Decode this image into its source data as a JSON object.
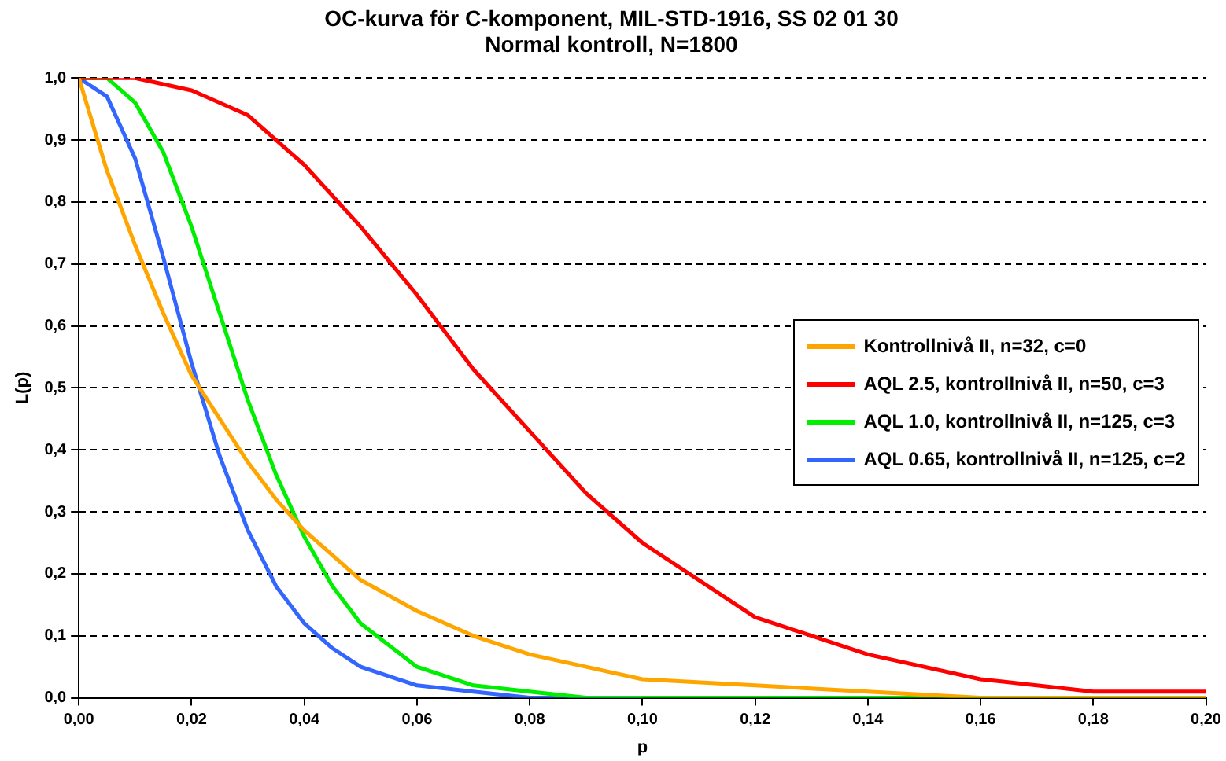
{
  "chart_data": {
    "type": "line",
    "title": "OC-kurva för C-komponent, MIL-STD-1916, SS 02 01 30",
    "subtitle": "Normal kontroll, N=1800",
    "xlabel": "p",
    "ylabel": "L(p)",
    "xlim": [
      0,
      0.2
    ],
    "ylim": [
      0,
      1
    ],
    "xticks": [
      {
        "value": 0,
        "label": "0,00"
      },
      {
        "value": 0.02,
        "label": "0,02"
      },
      {
        "value": 0.04,
        "label": "0,04"
      },
      {
        "value": 0.06,
        "label": "0,06"
      },
      {
        "value": 0.08,
        "label": "0,08"
      },
      {
        "value": 0.1,
        "label": "0,10"
      },
      {
        "value": 0.12,
        "label": "0,12"
      },
      {
        "value": 0.14,
        "label": "0,14"
      },
      {
        "value": 0.16,
        "label": "0,16"
      },
      {
        "value": 0.18,
        "label": "0,18"
      },
      {
        "value": 0.2,
        "label": "0,20"
      }
    ],
    "yticks": [
      {
        "value": 0,
        "label": "0,0"
      },
      {
        "value": 0.1,
        "label": "0,1"
      },
      {
        "value": 0.2,
        "label": "0,2"
      },
      {
        "value": 0.3,
        "label": "0,3"
      },
      {
        "value": 0.4,
        "label": "0,4"
      },
      {
        "value": 0.5,
        "label": "0,5"
      },
      {
        "value": 0.6,
        "label": "0,6"
      },
      {
        "value": 0.7,
        "label": "0,7"
      },
      {
        "value": 0.8,
        "label": "0,8"
      },
      {
        "value": 0.9,
        "label": "0,9"
      },
      {
        "value": 1,
        "label": "1,0"
      }
    ],
    "grid": "y",
    "legend": "right",
    "marker": "none",
    "line_style": "solid",
    "series": [
      {
        "name": "Kontrollnivå II, n=32, c=0",
        "color": "#ffa500",
        "x": [
          0,
          0.005,
          0.01,
          0.015,
          0.02,
          0.025,
          0.03,
          0.035,
          0.04,
          0.05,
          0.06,
          0.07,
          0.08,
          0.09,
          0.1,
          0.12,
          0.14,
          0.16,
          0.18,
          0.2
        ],
        "values": [
          1,
          0.85,
          0.73,
          0.62,
          0.52,
          0.45,
          0.38,
          0.32,
          0.27,
          0.19,
          0.14,
          0.1,
          0.07,
          0.05,
          0.03,
          0.02,
          0.01,
          0,
          0,
          0
        ]
      },
      {
        "name": "AQL 2.5, kontrollnivå II, n=50, c=3",
        "color": "#ff0000",
        "x": [
          0,
          0.005,
          0.01,
          0.02,
          0.03,
          0.04,
          0.05,
          0.06,
          0.07,
          0.08,
          0.09,
          0.1,
          0.12,
          0.14,
          0.16,
          0.18,
          0.2
        ],
        "values": [
          1,
          1,
          1,
          0.98,
          0.94,
          0.86,
          0.76,
          0.65,
          0.53,
          0.43,
          0.33,
          0.25,
          0.13,
          0.07,
          0.03,
          0.01,
          0.01
        ]
      },
      {
        "name": "AQL 1.0, kontrollnivå II, n=125, c=3",
        "color": "#00ee00",
        "x": [
          0,
          0.005,
          0.01,
          0.015,
          0.02,
          0.025,
          0.03,
          0.035,
          0.04,
          0.045,
          0.05,
          0.06,
          0.07,
          0.08,
          0.09,
          0.1,
          0.12,
          0.2
        ],
        "values": [
          1,
          1,
          0.96,
          0.88,
          0.76,
          0.62,
          0.48,
          0.36,
          0.26,
          0.18,
          0.12,
          0.05,
          0.02,
          0.01,
          0,
          0,
          0,
          0
        ]
      },
      {
        "name": "AQL 0.65, kontrollnivå II, n=125, c=2",
        "color": "#3366ff",
        "x": [
          0,
          0.005,
          0.01,
          0.015,
          0.02,
          0.025,
          0.03,
          0.035,
          0.04,
          0.045,
          0.05,
          0.06,
          0.07,
          0.08,
          0.09,
          0.1
        ],
        "values": [
          1,
          0.97,
          0.87,
          0.71,
          0.54,
          0.39,
          0.27,
          0.18,
          0.12,
          0.08,
          0.05,
          0.02,
          0.01,
          0,
          0,
          0
        ]
      }
    ]
  }
}
